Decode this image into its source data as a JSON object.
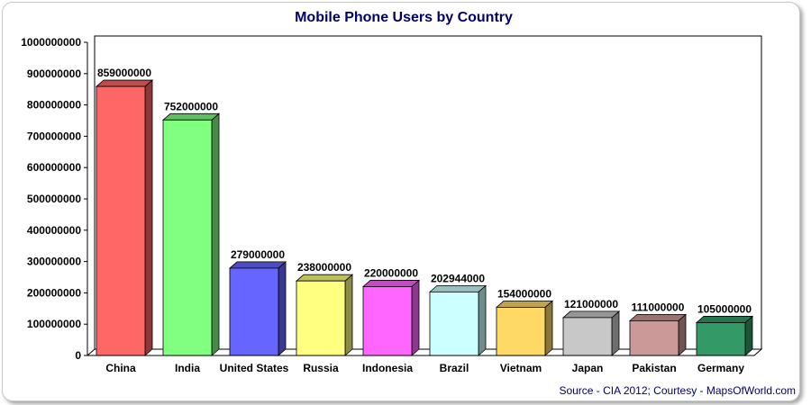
{
  "chart_data": {
    "type": "bar",
    "title": "Mobile Phone Users by Country",
    "xlabel": "",
    "ylabel": "",
    "ylim": [
      0,
      1000000000
    ],
    "yticks": [
      0,
      100000000,
      200000000,
      300000000,
      400000000,
      500000000,
      600000000,
      700000000,
      800000000,
      900000000,
      1000000000
    ],
    "ytick_labels": [
      "0",
      "100000000",
      "200000000",
      "300000000",
      "400000000",
      "500000000",
      "600000000",
      "700000000",
      "800000000",
      "900000000",
      "1000000000"
    ],
    "grid": false,
    "legend": "none",
    "style": "3d-bars",
    "categories": [
      "China",
      "India",
      "United States",
      "Russia",
      "Indonesia",
      "Brazil",
      "Vietnam",
      "Japan",
      "Pakistan",
      "Germany"
    ],
    "values": [
      859000000,
      752000000,
      279000000,
      238000000,
      220000000,
      202944000,
      154000000,
      121000000,
      111000000,
      105000000
    ],
    "value_labels": [
      "859000000",
      "752000000",
      "279000000",
      "238000000",
      "220000000",
      "202944000",
      "154000000",
      "121000000",
      "111000000",
      "105000000"
    ],
    "colors": [
      "#ff6666",
      "#80ff80",
      "#6666ff",
      "#ffff80",
      "#ff66ff",
      "#ccffff",
      "#ffd966",
      "#c8c8c8",
      "#cc9999",
      "#339966"
    ],
    "source": "Source - CIA 2012; Courtesy - MapsOfWorld.com"
  },
  "colors": {
    "title": "#000066",
    "source": "#000066",
    "axis": "#000000"
  }
}
